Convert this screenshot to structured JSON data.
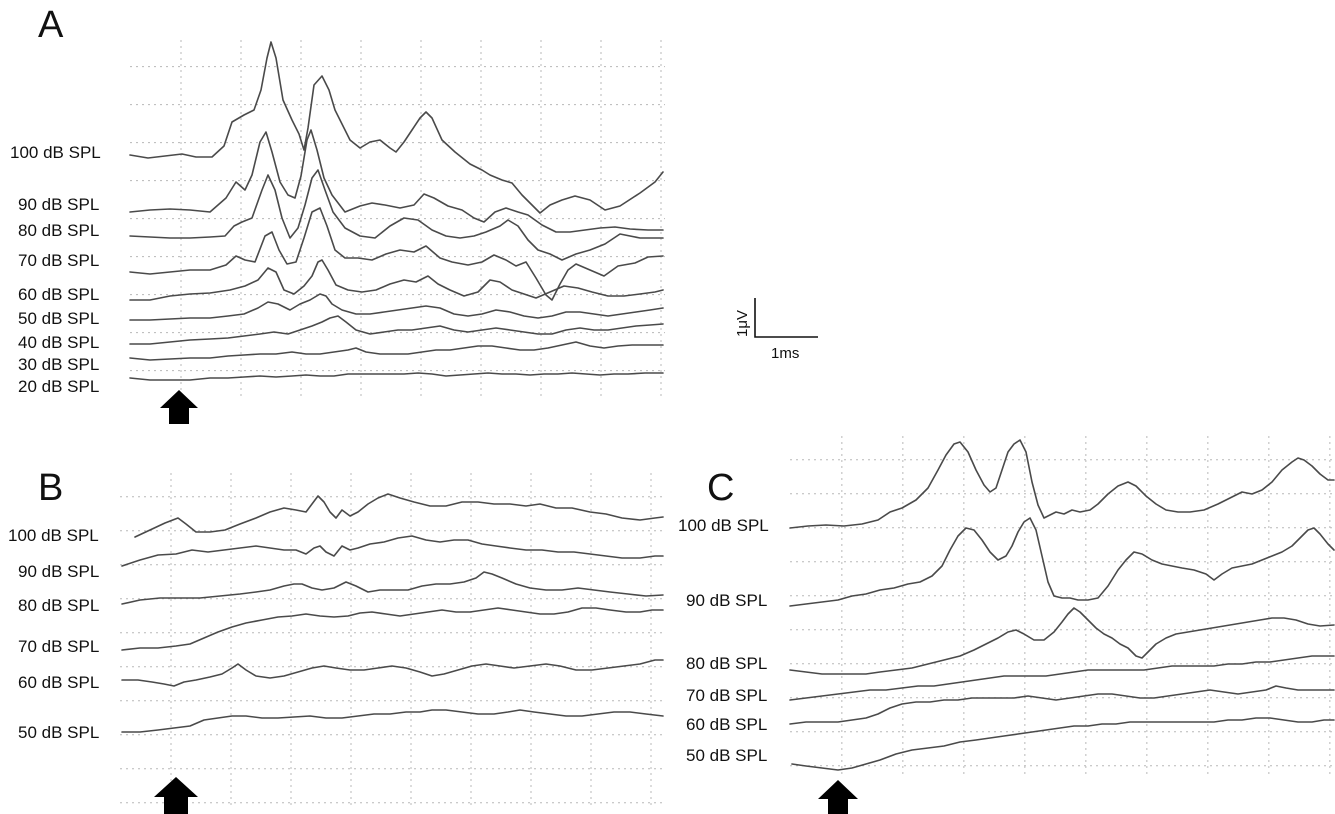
{
  "panels": [
    {
      "id": "A",
      "letter": "A",
      "labels": [
        "100 dB SPL",
        "90 dB SPL",
        "80 dB SPL",
        "70 dB SPL",
        "60 dB SPL",
        "50 dB SPL",
        "40 dB SPL",
        "30 dB SPL",
        "20 dB SPL"
      ]
    },
    {
      "id": "B",
      "letter": "B",
      "labels": [
        "100 dB SPL",
        "90 dB SPL",
        "80 dB SPL",
        "70 dB SPL",
        "60 dB SPL",
        "50 dB SPL"
      ]
    },
    {
      "id": "C",
      "letter": "C",
      "labels": [
        "100 dB SPL",
        "90 dB SPL",
        "80 dB SPL",
        "70 dB SPL",
        "60 dB SPL",
        "50 dB SPL"
      ]
    }
  ],
  "scale_bar": {
    "amplitude": "1μV",
    "time": "1ms"
  },
  "colors": {
    "trace": "#4a4a4a",
    "grid": "#b8b8b8",
    "arrow": "#000000",
    "text": "#111111"
  },
  "icons": {
    "stimulus_marker": "stimulus-onset-arrow-icon"
  }
}
